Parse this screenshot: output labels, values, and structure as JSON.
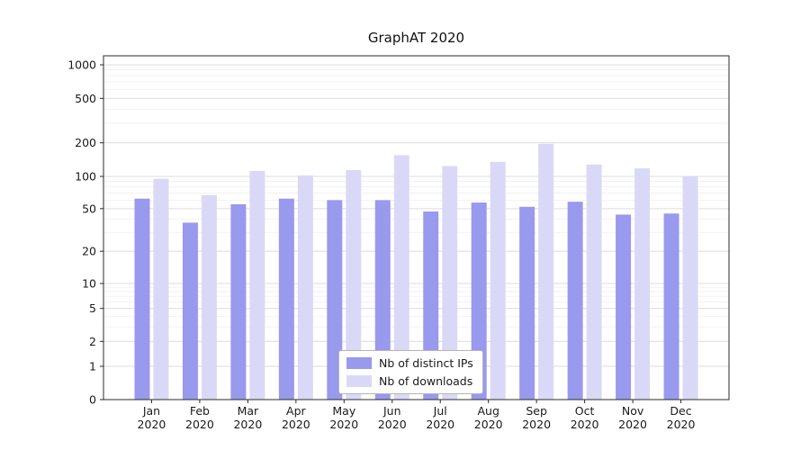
{
  "chart_data": {
    "type": "bar",
    "title": "GraphAT 2020",
    "categories": [
      "Jan 2020",
      "Feb 2020",
      "Mar 2020",
      "Apr 2020",
      "May 2020",
      "Jun 2020",
      "Jul 2020",
      "Aug 2020",
      "Sep 2020",
      "Oct 2020",
      "Nov 2020",
      "Dec 2020"
    ],
    "series": [
      {
        "name": "Nb of distinct IPs",
        "color": "#9999ee",
        "values": [
          62,
          37,
          55,
          62,
          60,
          60,
          47,
          57,
          52,
          58,
          44,
          45
        ]
      },
      {
        "name": "Nb of downloads",
        "color": "#d9d9f7",
        "values": [
          95,
          67,
          112,
          102,
          114,
          155,
          124,
          135,
          196,
          128,
          118,
          100
        ]
      }
    ],
    "xlabel": "",
    "ylabel": "",
    "yscale": "symlog",
    "yticks": [
      0,
      1,
      2,
      5,
      10,
      20,
      50,
      100,
      200,
      500,
      1000
    ],
    "minor_yticks": [
      3,
      4,
      6,
      7,
      8,
      9,
      30,
      40,
      60,
      70,
      80,
      90,
      300,
      400,
      600,
      700,
      800,
      900
    ],
    "ylim": [
      0,
      1200
    ],
    "grid": true,
    "legend_position": "lower center"
  },
  "colors": {
    "background": "#ffffff",
    "axis": "#2a2a2a",
    "tick": "#1a1a1a",
    "major_grid": "#dcdcdc",
    "minor_grid": "#efefef",
    "legend_border": "#b5b5b5"
  }
}
